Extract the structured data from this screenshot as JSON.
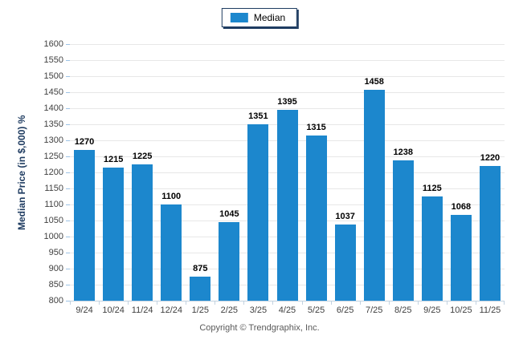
{
  "legend": {
    "label": "Median",
    "swatch_color": "#1c87cd"
  },
  "y_axis": {
    "title": "Median Price (in $,000) %"
  },
  "footer": {
    "copyright": "Copyright © Trendgraphix, Inc."
  },
  "chart_data": {
    "type": "bar",
    "title": "",
    "categories": [
      "9/24",
      "10/24",
      "11/24",
      "12/24",
      "1/25",
      "2/25",
      "3/25",
      "4/25",
      "5/25",
      "6/25",
      "7/25",
      "8/25",
      "9/25",
      "10/25",
      "11/25"
    ],
    "series": [
      {
        "name": "Median",
        "values": [
          1270,
          1215,
          1225,
          1100,
          875,
          1045,
          1351,
          1395,
          1315,
          1037,
          1458,
          1238,
          1125,
          1068,
          1220
        ]
      }
    ],
    "xlabel": "",
    "ylabel": "Median Price (in $,000) %",
    "ylim": [
      800,
      1600
    ],
    "ytick_step": 50,
    "grid": true,
    "legend_position": "top-center",
    "bar_color": "#1c87cd",
    "gridline_color": "#e7e7e7",
    "axis_tick_color": "#9dc3e6"
  }
}
